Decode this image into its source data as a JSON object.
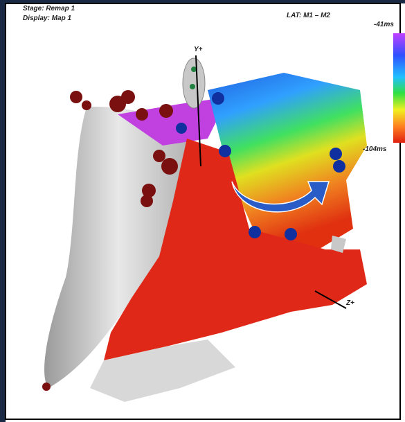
{
  "header": {
    "stage": "Stage: Remap 1",
    "display": "Display: Map 1",
    "map_type": "LAT: M1 – M2"
  },
  "color_scale": {
    "max_label": "-41ms",
    "min_label": "-104ms"
  },
  "axes": {
    "y": "Y+",
    "z": "Z+"
  }
}
